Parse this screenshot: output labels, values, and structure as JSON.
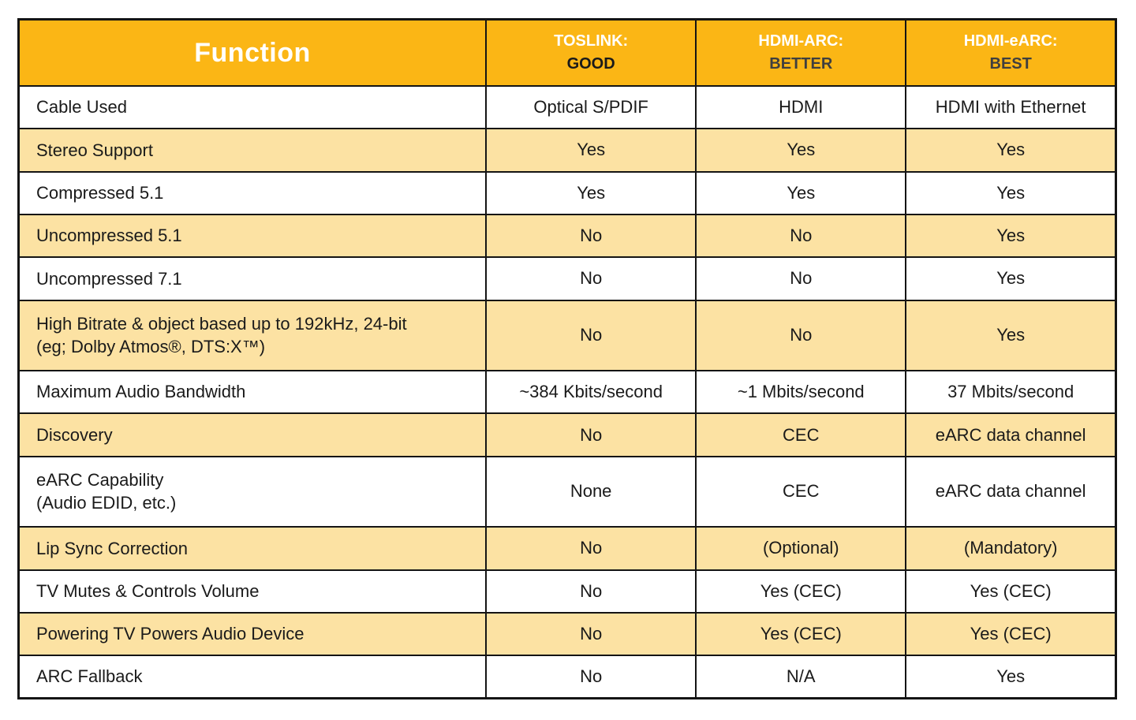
{
  "header": {
    "function_label": "Function",
    "columns": [
      {
        "protocol": "TOSLINK:",
        "rating": "GOOD"
      },
      {
        "protocol": "HDMI-ARC:",
        "rating": "BETTER"
      },
      {
        "protocol": "HDMI-eARC:",
        "rating": "BEST"
      }
    ]
  },
  "chart_data": {
    "type": "table",
    "title": "",
    "columns": [
      "Function",
      "TOSLINK: GOOD",
      "HDMI-ARC: BETTER",
      "HDMI-eARC: BEST"
    ],
    "rows": [
      [
        "Cable Used",
        "Optical S/PDIF",
        "HDMI",
        "HDMI with Ethernet"
      ],
      [
        "Stereo Support",
        "Yes",
        "Yes",
        "Yes"
      ],
      [
        "Compressed 5.1",
        "Yes",
        "Yes",
        "Yes"
      ],
      [
        "Uncompressed 5.1",
        "No",
        "No",
        "Yes"
      ],
      [
        "Uncompressed 7.1",
        "No",
        "No",
        "Yes"
      ],
      [
        "High Bitrate & object based up to 192kHz, 24-bit\n(eg; Dolby Atmos®, DTS:X™)",
        "No",
        "No",
        "Yes"
      ],
      [
        "Maximum Audio Bandwidth",
        "~384 Kbits/second",
        "~1 Mbits/second",
        "37 Mbits/second"
      ],
      [
        "Discovery",
        "No",
        "CEC",
        "eARC data channel"
      ],
      [
        "eARC Capability\n(Audio EDID, etc.)",
        "None",
        "CEC",
        "eARC data channel"
      ],
      [
        "Lip Sync Correction",
        "No",
        "(Optional)",
        "(Mandatory)"
      ],
      [
        "TV Mutes & Controls Volume",
        "No",
        "Yes (CEC)",
        "Yes (CEC)"
      ],
      [
        "Powering TV Powers Audio Device",
        "No",
        "Yes (CEC)",
        "Yes (CEC)"
      ],
      [
        "ARC Fallback",
        "No",
        "N/A",
        "Yes"
      ]
    ],
    "layout": {
      "stripe_pattern": "alternating white / peach starting with white",
      "tall_row_indices": [
        5,
        8
      ],
      "grid": "black 2-3px rules, all cells bordered"
    }
  },
  "colors": {
    "header_bg": "#fbb615",
    "stripe_bg": "#fce2a3",
    "row_bg": "#ffffff",
    "border": "#141414",
    "header_protocol_text": "#ffffff",
    "rating_good_text": "#1a1a1a",
    "rating_better_best_text": "#3f3f3f",
    "body_text": "#1a1a1a"
  }
}
